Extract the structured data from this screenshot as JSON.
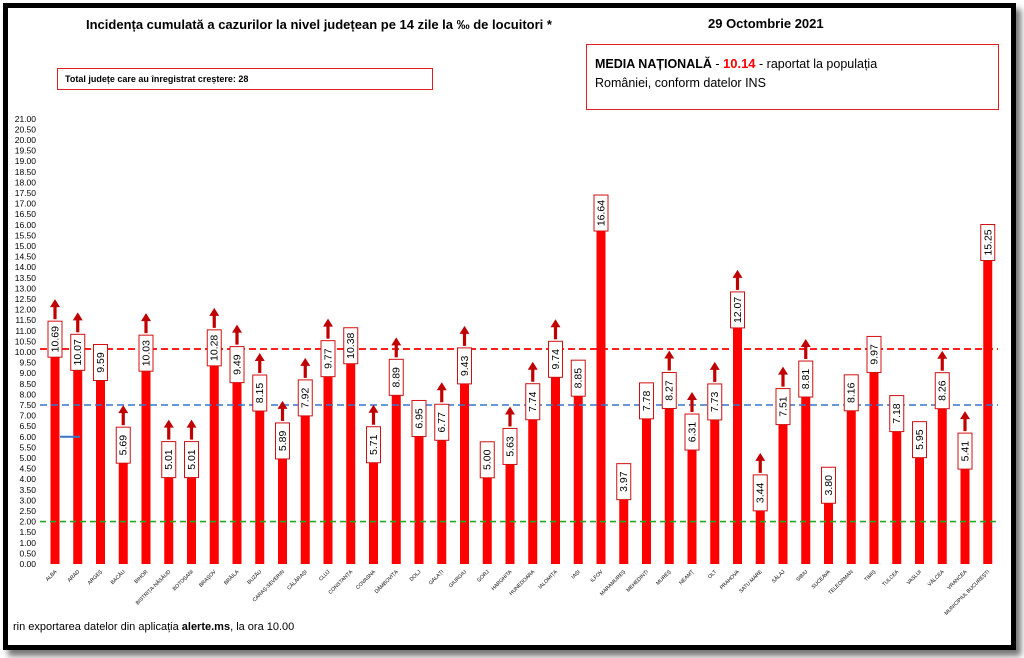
{
  "header": {
    "title": "Incidența cumulată a cazurilor la nivel județean pe 14 zile la ‰ de locuitori *",
    "date": "29 Octombrie 2021"
  },
  "total_box": {
    "label": "Total județe care au înregistrat creștere:",
    "value": "28"
  },
  "media_box": {
    "label": "MEDIA NAȚIONALĂ",
    "sep1": " - ",
    "value": "10.14",
    "sep2": " - ",
    "line1_rest": " raportat la populația",
    "line2": "României, conform datelor INS"
  },
  "footer": {
    "prefix": "rin exportarea datelor din aplicația ",
    "app": "alerte.ms",
    "suffix": ", la ora 10.00"
  },
  "colors": {
    "bar": "#ff0000",
    "arrow": "#c00000",
    "label_border": "#d01010",
    "line_red": "#ff0000",
    "line_blue": "#3377cc",
    "line_green": "#22aa22"
  },
  "chart_data": {
    "type": "bar",
    "categories": [
      "ALBA",
      "ARAD",
      "ARGEȘ",
      "BACĂU",
      "BIHOR",
      "BISTRIȚA-NĂSĂUD",
      "BOTOȘANI",
      "BRAȘOV",
      "BRĂILA",
      "BUZĂU",
      "CARAȘ-SEVERIN",
      "CĂLĂRAȘI",
      "CLUJ",
      "CONSTANȚA",
      "COVASNA",
      "DÂMBOVIȚA",
      "DOLJ",
      "GALAȚI",
      "GIURGIU",
      "GORJ",
      "HARGHITA",
      "HUNEDOARA",
      "IALOMIȚA",
      "IAȘI",
      "ILFOV",
      "MARAMUREȘ",
      "MEHEDINȚI",
      "MUREȘ",
      "NEAMȚ",
      "OLT",
      "PRAHOVA",
      "SATU MARE",
      "SĂLAJ",
      "SIBIU",
      "SUCEAVA",
      "TELEORMAN",
      "TIMIȘ",
      "TULCEA",
      "VASLUI",
      "VÂLCEA",
      "VRANCEA",
      "MUNICIPIUL BUCUREȘTI"
    ],
    "values": [
      10.69,
      10.07,
      9.59,
      5.69,
      10.03,
      5.01,
      5.01,
      10.28,
      9.49,
      8.15,
      5.89,
      7.92,
      9.77,
      10.38,
      5.71,
      8.89,
      6.95,
      6.77,
      9.43,
      5.0,
      5.63,
      7.74,
      9.74,
      8.85,
      16.64,
      3.97,
      7.78,
      8.27,
      6.31,
      7.73,
      12.07,
      3.44,
      7.51,
      8.81,
      3.8,
      8.16,
      9.97,
      7.18,
      5.95,
      8.26,
      5.41,
      15.25
    ],
    "labels": [
      "10.69",
      "10.07",
      "9.59",
      "5.69",
      "10.03",
      "5.01",
      "5.01",
      "10.28",
      "9.49",
      "8.15",
      "5.89",
      "7.92",
      "9.77",
      "10.38",
      "5.71",
      "8.89",
      "6.95",
      "6.77",
      "9.43",
      "5.00",
      "5.63",
      "7.74",
      "9.74",
      "8.85",
      "16.64",
      "3.97",
      "7.78",
      "8.27",
      "6.31",
      "7.73",
      "12.07",
      "3.44",
      "7.51",
      "8.81",
      "3.80",
      "8.16",
      "9.97",
      "7.18",
      "5.95",
      "8.26",
      "5.41",
      "15.25"
    ],
    "increase": [
      true,
      true,
      false,
      true,
      true,
      true,
      true,
      true,
      true,
      true,
      true,
      true,
      true,
      false,
      true,
      true,
      false,
      true,
      true,
      false,
      true,
      true,
      true,
      false,
      false,
      false,
      false,
      true,
      true,
      true,
      true,
      true,
      true,
      true,
      false,
      false,
      false,
      false,
      false,
      true,
      true,
      false
    ],
    "yticks": [
      "0.00",
      "0.50",
      "1.00",
      "1.50",
      "2.00",
      "2.50",
      "3.00",
      "3.50",
      "4.00",
      "4.50",
      "5.00",
      "5.50",
      "6.00",
      "6.50",
      "7.00",
      "7.50",
      "8.00",
      "8.50",
      "9.00",
      "9.50",
      "10.00",
      "10.50",
      "11.00",
      "11.50",
      "12.00",
      "12.50",
      "13.00",
      "13.50",
      "14.00",
      "14.50",
      "15.00",
      "15.50",
      "16.00",
      "16.50",
      "17.00",
      "17.50",
      "18.00",
      "18.50",
      "19.00",
      "19.50",
      "20.00",
      "20.50",
      "21.00"
    ],
    "ylim": [
      0,
      21
    ],
    "reference_lines": [
      {
        "value": 10.14,
        "style": "red-dashed"
      },
      {
        "value": 7.5,
        "style": "blue-dashed"
      },
      {
        "value": 2.0,
        "style": "green-dashed"
      }
    ],
    "legend_marker": {
      "value": 6.0,
      "style": "blue-solid"
    },
    "grid": false
  }
}
